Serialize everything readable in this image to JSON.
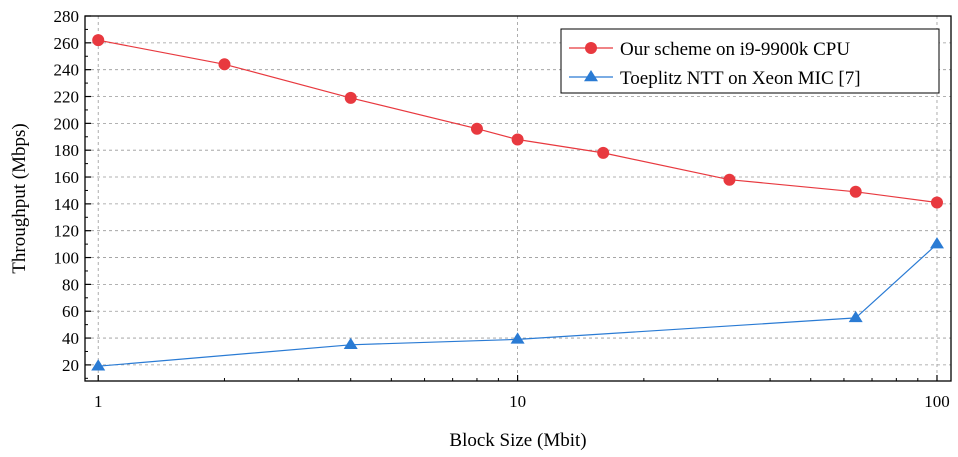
{
  "chart_data": {
    "type": "line",
    "title": "",
    "xlabel": "Block Size (Mbit)",
    "ylabel": "Throughput (Mbps)",
    "xscale": "log",
    "xlim": [
      0.93,
      108
    ],
    "ylim": [
      8,
      280
    ],
    "xticks": [
      1,
      10,
      100
    ],
    "xtick_labels": [
      "1",
      "10",
      "100"
    ],
    "yticks": [
      20,
      40,
      60,
      80,
      100,
      120,
      140,
      160,
      180,
      200,
      220,
      240,
      260,
      280
    ],
    "grid": true,
    "legend_position": "top-right",
    "series": [
      {
        "name": "Our scheme on i9-9900k CPU",
        "color": "#e8393f",
        "marker": "circle",
        "x": [
          1,
          2,
          4,
          8,
          10,
          16,
          32,
          64,
          100
        ],
        "y": [
          262,
          244,
          219,
          196,
          188,
          178,
          158,
          149,
          141
        ]
      },
      {
        "name": "Toeplitz NTT on Xeon MIC [7]",
        "color": "#2a7bd4",
        "marker": "triangle",
        "x": [
          1,
          4,
          10,
          64,
          100
        ],
        "y": [
          19,
          35,
          39,
          55,
          110
        ]
      }
    ]
  }
}
